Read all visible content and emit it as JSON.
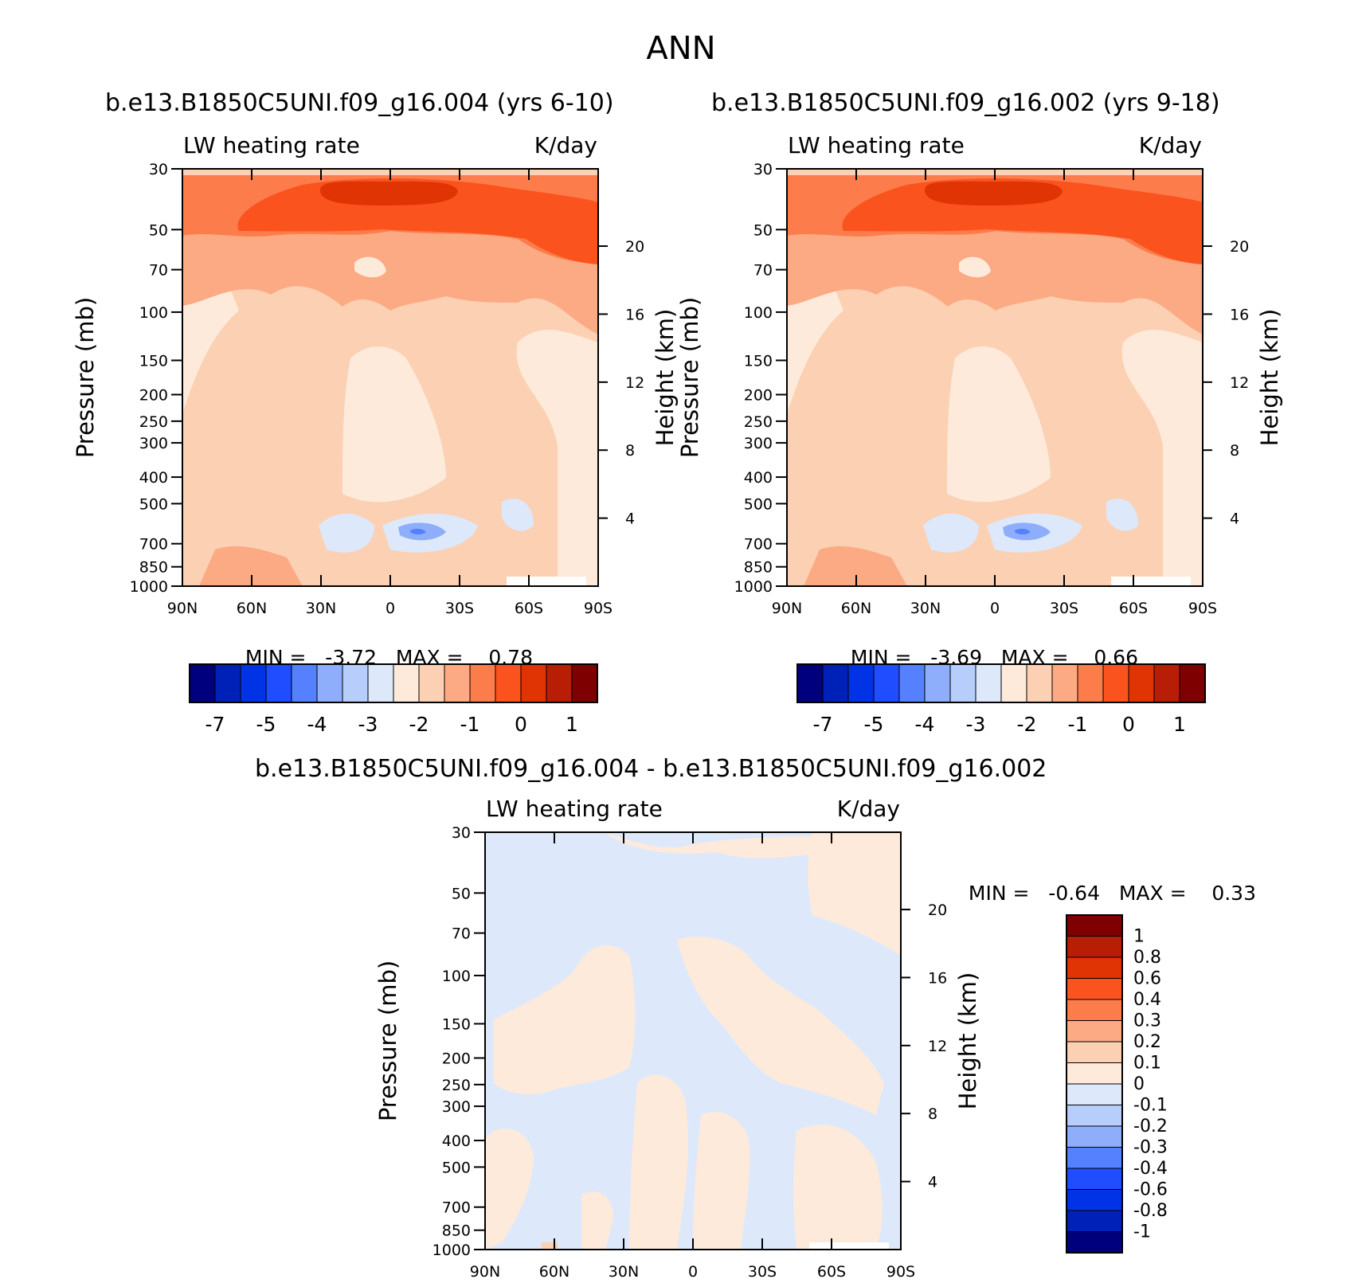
{
  "title": "ANN",
  "panels": [
    {
      "case": "b.e13.B1850C5UNI.f09_g16.004 (yrs 6-10)",
      "variable": "LW heating rate",
      "units": "K/day",
      "min_label": "MIN =",
      "min_value": "-3.72",
      "max_label": "MAX =",
      "max_value": "0.78"
    },
    {
      "case": "b.e13.B1850C5UNI.f09_g16.002 (yrs 9-18)",
      "variable": "LW heating rate",
      "units": "K/day",
      "min_label": "MIN =",
      "min_value": "-3.69",
      "max_label": "MAX =",
      "max_value": "0.66"
    },
    {
      "case": "b.e13.B1850C5UNI.f09_g16.004 - b.e13.B1850C5UNI.f09_g16.002",
      "variable": "LW heating rate",
      "units": "K/day",
      "min_label": "MIN =",
      "min_value": "-0.64",
      "max_label": "MAX =",
      "max_value": "0.33"
    }
  ],
  "axes": {
    "ylabel_left": "Pressure (mb)",
    "ylabel_right": "Height (km)"
  },
  "colors": {
    "ref_scale": [
      "#00007f",
      "#0021b8",
      "#0033e6",
      "#1f4dff",
      "#5581ff",
      "#8eaefc",
      "#b7cdfc",
      "#dde9fb",
      "#fdeadb",
      "#fcd0b3",
      "#fcaa83",
      "#fc7d4b",
      "#fb531e",
      "#e03404",
      "#b81d06",
      "#7f0000"
    ],
    "diff_scale": [
      "#7f0000",
      "#b81d06",
      "#e03404",
      "#fb531e",
      "#fc7d4b",
      "#fcaa83",
      "#fcd0b3",
      "#fdeadb",
      "#dde9fb",
      "#b7cdfc",
      "#8eaefc",
      "#5581ff",
      "#1f4dff",
      "#0033e6",
      "#0021b8",
      "#00007f"
    ]
  },
  "chart_data": [
    {
      "type": "contour",
      "title": "b.e13.B1850C5UNI.f09_g16.004 (yrs 6-10)",
      "xlabel": "",
      "ylabel": "Pressure (mb)",
      "y2label": "Height (km)",
      "x_ticks": [
        "90N",
        "60N",
        "30N",
        "0",
        "30S",
        "60S",
        "90S"
      ],
      "x_range": [
        90,
        -90
      ],
      "y_ticks": [
        "30",
        "50",
        "70",
        "100",
        "150",
        "200",
        "250",
        "300",
        "400",
        "500",
        "700",
        "850",
        "1000"
      ],
      "y_range_mb": [
        30,
        1000
      ],
      "y2_ticks": [
        "20",
        "16",
        "12",
        "8",
        "4"
      ],
      "colorbar_labels": [
        "-7",
        "-5",
        "-4",
        "-3",
        "-2",
        "-1",
        "0",
        "1"
      ],
      "min": -3.72,
      "max": 0.78
    },
    {
      "type": "contour",
      "title": "b.e13.B1850C5UNI.f09_g16.002 (yrs 9-18)",
      "xlabel": "",
      "ylabel": "Pressure (mb)",
      "y2label": "Height (km)",
      "x_ticks": [
        "90N",
        "60N",
        "30N",
        "0",
        "30S",
        "60S",
        "90S"
      ],
      "x_range": [
        90,
        -90
      ],
      "y_ticks": [
        "30",
        "50",
        "70",
        "100",
        "150",
        "200",
        "250",
        "300",
        "400",
        "500",
        "700",
        "850",
        "1000"
      ],
      "y_range_mb": [
        30,
        1000
      ],
      "y2_ticks": [
        "20",
        "16",
        "12",
        "8",
        "4"
      ],
      "colorbar_labels": [
        "-7",
        "-5",
        "-4",
        "-3",
        "-2",
        "-1",
        "0",
        "1"
      ],
      "min": -3.69,
      "max": 0.66
    },
    {
      "type": "contour",
      "title": "b.e13.B1850C5UNI.f09_g16.004 - b.e13.B1850C5UNI.f09_g16.002",
      "xlabel": "",
      "ylabel": "Pressure (mb)",
      "y2label": "Height (km)",
      "x_ticks": [
        "90N",
        "60N",
        "30N",
        "0",
        "30S",
        "60S",
        "90S"
      ],
      "x_range": [
        90,
        -90
      ],
      "y_ticks": [
        "30",
        "50",
        "70",
        "100",
        "150",
        "200",
        "250",
        "300",
        "400",
        "500",
        "700",
        "850",
        "1000"
      ],
      "y_range_mb": [
        30,
        1000
      ],
      "y2_ticks": [
        "20",
        "16",
        "12",
        "8",
        "4"
      ],
      "colorbar_labels": [
        "1",
        "0.8",
        "0.6",
        "0.4",
        "0.3",
        "0.2",
        "0.1",
        "0",
        "-0.1",
        "-0.2",
        "-0.3",
        "-0.4",
        "-0.6",
        "-0.8",
        "-1"
      ],
      "min": -0.64,
      "max": 0.33
    }
  ]
}
